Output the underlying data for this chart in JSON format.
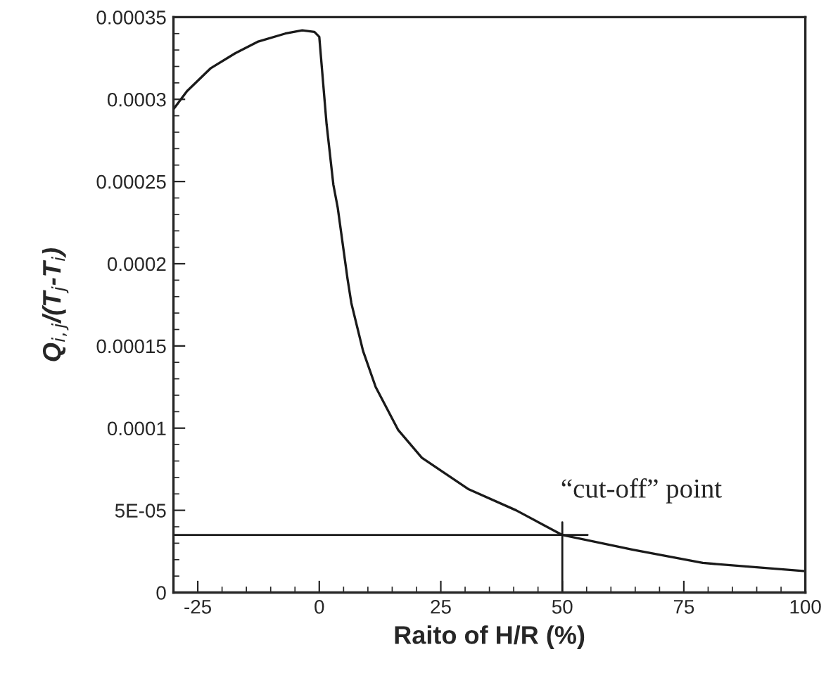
{
  "chart_data": {
    "type": "line",
    "xlabel": "Raito of H/R (%)",
    "ylabel": "Q$_{i,j}$/(T$_{j}$-T$_{i}$)",
    "x": [
      -30,
      -27.2,
      -22.3,
      -17.3,
      -12.7,
      -7,
      -3.5,
      -1,
      0,
      1.5,
      2.9,
      3.8,
      5.8,
      6.6,
      9,
      11.6,
      16.2,
      21.1,
      30.6,
      40.5,
      50,
      64.5,
      78.9,
      100
    ],
    "series": [
      {
        "color": "#1a1a1a",
        "values": [
          0.000294,
          0.000305,
          0.000319,
          0.000328,
          0.000335,
          0.00034,
          0.000342,
          0.000341,
          0.000338,
          0.000285,
          0.000248,
          0.000234,
          0.000191,
          0.000176,
          0.000147,
          0.000125,
          9.9e-05,
          8.2e-05,
          6.3e-05,
          5e-05,
          3.5e-05,
          2.6e-05,
          1.8e-05,
          1.3e-05
        ]
      }
    ],
    "xlim": [
      -30,
      100
    ],
    "xticks": [
      -25,
      0,
      25,
      50,
      75,
      100
    ],
    "ylim": [
      0,
      0.00035
    ],
    "yticks": [
      0,
      {
        "value": 5e-05,
        "label": "5E-05"
      },
      0.0001,
      0.00015,
      0.0002,
      0.00025,
      0.0003,
      0.00035
    ],
    "ref_lines": [
      {
        "axis": "y",
        "value": 3.5e-05
      },
      {
        "axis": "x",
        "value": 50
      }
    ],
    "annotations": [
      {
        "text": "“cut-off” point",
        "x": 50,
        "y": 3.5e-05
      }
    ],
    "grid": false,
    "marker": "none",
    "line_style": "solid"
  }
}
